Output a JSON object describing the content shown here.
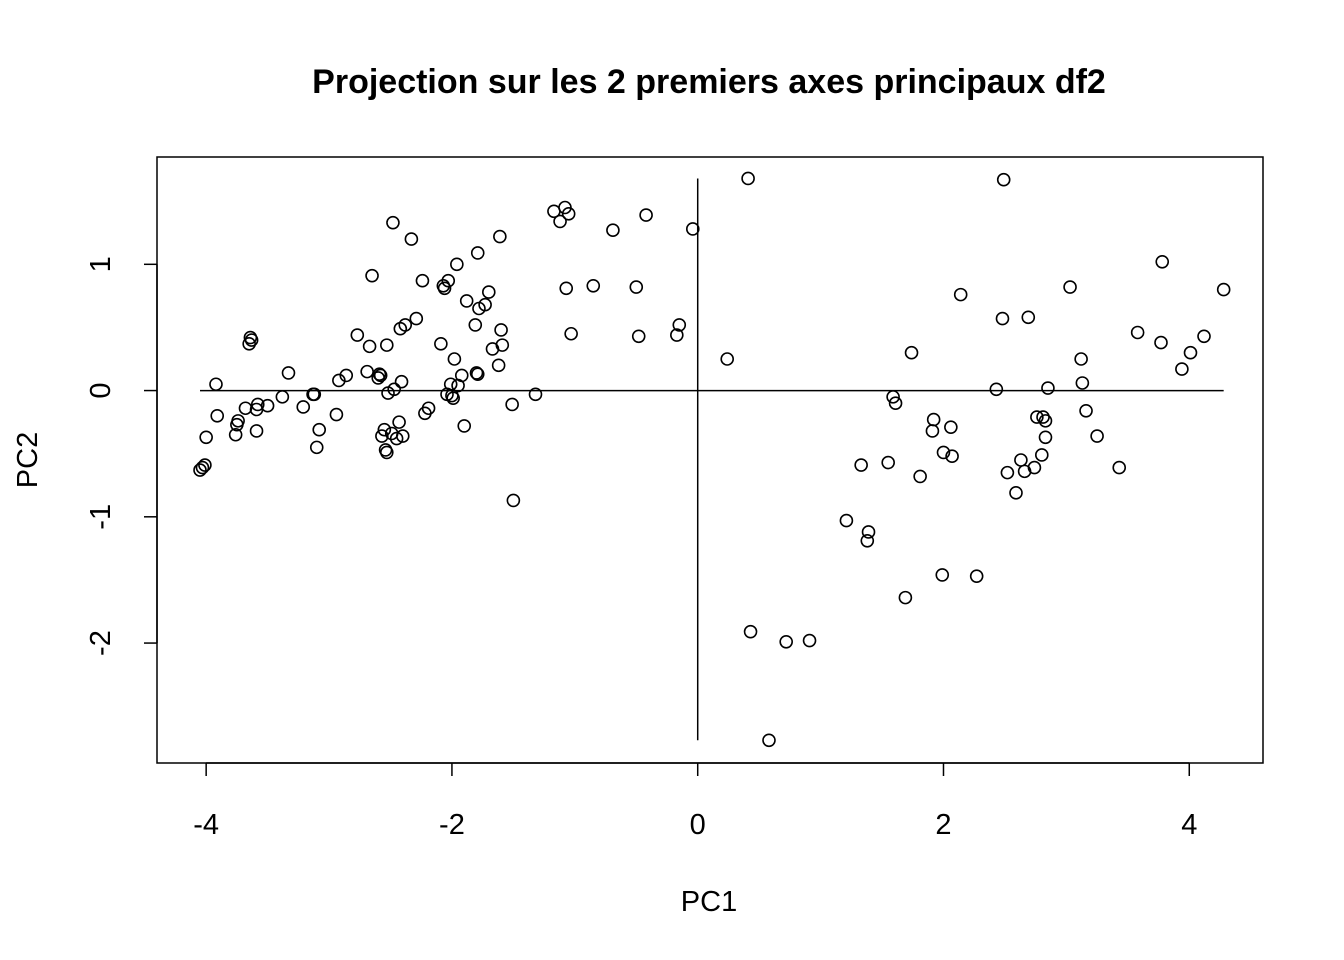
{
  "chart_data": {
    "type": "scatter",
    "title": "Projection sur les 2 premiers axes principaux df2",
    "xlabel": "PC1",
    "ylabel": "PC2",
    "xlim": [
      -4.4,
      4.6
    ],
    "ylim": [
      -2.95,
      1.85
    ],
    "xticks": [
      {
        "value": -4,
        "label": "-4"
      },
      {
        "value": -2,
        "label": "-2"
      },
      {
        "value": 0,
        "label": "0"
      },
      {
        "value": 2,
        "label": "2"
      },
      {
        "value": 4,
        "label": "4"
      }
    ],
    "yticks": [
      {
        "value": -2,
        "label": "-2"
      },
      {
        "value": -1,
        "label": "-1"
      },
      {
        "value": 0,
        "label": "0"
      },
      {
        "value": 1,
        "label": "1"
      }
    ],
    "reference_lines": {
      "horizontal": {
        "y": 0,
        "x_from": -4.05,
        "x_to": 4.28
      },
      "vertical": {
        "x": 0,
        "y_from": -2.77,
        "y_to": 1.68
      }
    },
    "grid": false,
    "legend": "none",
    "marker": "open-circle",
    "color": "#000000",
    "points": [
      [
        -4.05,
        -0.63
      ],
      [
        -4.03,
        -0.61
      ],
      [
        -4.01,
        -0.59
      ],
      [
        -4.0,
        -0.37
      ],
      [
        -3.92,
        0.05
      ],
      [
        -3.91,
        -0.2
      ],
      [
        -3.75,
        -0.27
      ],
      [
        -3.76,
        -0.35
      ],
      [
        -3.74,
        -0.24
      ],
      [
        -3.68,
        -0.14
      ],
      [
        -3.65,
        0.37
      ],
      [
        -3.64,
        0.42
      ],
      [
        -3.63,
        0.4
      ],
      [
        -3.59,
        -0.32
      ],
      [
        -3.59,
        -0.15
      ],
      [
        -3.58,
        -0.11
      ],
      [
        -3.5,
        -0.12
      ],
      [
        -3.38,
        -0.05
      ],
      [
        -3.33,
        0.14
      ],
      [
        -3.21,
        -0.13
      ],
      [
        -3.13,
        -0.03
      ],
      [
        -3.12,
        -0.03
      ],
      [
        -3.1,
        -0.45
      ],
      [
        -3.08,
        -0.31
      ],
      [
        -2.94,
        -0.19
      ],
      [
        -2.92,
        0.08
      ],
      [
        -2.86,
        0.12
      ],
      [
        -2.77,
        0.44
      ],
      [
        -2.69,
        0.15
      ],
      [
        -2.67,
        0.35
      ],
      [
        -2.65,
        0.91
      ],
      [
        -2.6,
        0.1
      ],
      [
        -2.59,
        0.13
      ],
      [
        -2.58,
        0.12
      ],
      [
        -2.57,
        -0.36
      ],
      [
        -2.55,
        -0.31
      ],
      [
        -2.54,
        -0.47
      ],
      [
        -2.53,
        -0.49
      ],
      [
        -2.53,
        0.36
      ],
      [
        -2.52,
        -0.02
      ],
      [
        -2.49,
        -0.34
      ],
      [
        -2.48,
        1.33
      ],
      [
        -2.47,
        0.01
      ],
      [
        -2.45,
        -0.38
      ],
      [
        -2.43,
        -0.25
      ],
      [
        -2.42,
        0.49
      ],
      [
        -2.41,
        0.07
      ],
      [
        -2.4,
        -0.36
      ],
      [
        -2.38,
        0.52
      ],
      [
        -2.33,
        1.2
      ],
      [
        -2.29,
        0.57
      ],
      [
        -2.24,
        0.87
      ],
      [
        -2.22,
        -0.18
      ],
      [
        -2.19,
        -0.14
      ],
      [
        -2.09,
        0.37
      ],
      [
        -2.07,
        0.83
      ],
      [
        -2.06,
        0.81
      ],
      [
        -2.04,
        -0.03
      ],
      [
        -2.03,
        0.87
      ],
      [
        -2.01,
        0.05
      ],
      [
        -2.0,
        -0.04
      ],
      [
        -1.99,
        -0.06
      ],
      [
        -1.98,
        0.25
      ],
      [
        -1.96,
        1.0
      ],
      [
        -1.95,
        0.04
      ],
      [
        -1.92,
        0.12
      ],
      [
        -1.9,
        -0.28
      ],
      [
        -1.88,
        0.71
      ],
      [
        -1.81,
        0.52
      ],
      [
        -1.8,
        0.14
      ],
      [
        -1.79,
        0.13
      ],
      [
        -1.79,
        1.09
      ],
      [
        -1.78,
        0.65
      ],
      [
        -1.73,
        0.68
      ],
      [
        -1.7,
        0.78
      ],
      [
        -1.67,
        0.33
      ],
      [
        -1.62,
        0.2
      ],
      [
        -1.61,
        1.22
      ],
      [
        -1.6,
        0.48
      ],
      [
        -1.59,
        0.36
      ],
      [
        -1.51,
        -0.11
      ],
      [
        -1.5,
        -0.87
      ],
      [
        -1.32,
        -0.03
      ],
      [
        -1.17,
        1.42
      ],
      [
        -1.12,
        1.34
      ],
      [
        -1.08,
        1.45
      ],
      [
        -1.07,
        0.81
      ],
      [
        -1.05,
        1.4
      ],
      [
        -1.03,
        0.45
      ],
      [
        -0.85,
        0.83
      ],
      [
        -0.69,
        1.27
      ],
      [
        -0.5,
        0.82
      ],
      [
        -0.48,
        0.43
      ],
      [
        -0.42,
        1.39
      ],
      [
        -0.17,
        0.44
      ],
      [
        -0.15,
        0.52
      ],
      [
        -0.04,
        1.28
      ],
      [
        0.24,
        0.25
      ],
      [
        0.41,
        1.68
      ],
      [
        0.43,
        -1.91
      ],
      [
        0.58,
        -2.77
      ],
      [
        0.72,
        -1.99
      ],
      [
        0.91,
        -1.98
      ],
      [
        1.21,
        -1.03
      ],
      [
        1.33,
        -0.59
      ],
      [
        1.38,
        -1.19
      ],
      [
        1.39,
        -1.12
      ],
      [
        1.55,
        -0.57
      ],
      [
        1.59,
        -0.05
      ],
      [
        1.61,
        -0.1
      ],
      [
        1.69,
        -1.64
      ],
      [
        1.74,
        0.3
      ],
      [
        1.81,
        -0.68
      ],
      [
        1.91,
        -0.32
      ],
      [
        1.92,
        -0.23
      ],
      [
        1.99,
        -1.46
      ],
      [
        2.0,
        -0.49
      ],
      [
        2.06,
        -0.29
      ],
      [
        2.07,
        -0.52
      ],
      [
        2.14,
        0.76
      ],
      [
        2.27,
        -1.47
      ],
      [
        2.43,
        0.01
      ],
      [
        2.48,
        0.57
      ],
      [
        2.49,
        1.67
      ],
      [
        2.52,
        -0.65
      ],
      [
        2.59,
        -0.81
      ],
      [
        2.63,
        -0.55
      ],
      [
        2.66,
        -0.64
      ],
      [
        2.69,
        0.58
      ],
      [
        2.74,
        -0.61
      ],
      [
        2.76,
        -0.21
      ],
      [
        2.8,
        -0.51
      ],
      [
        2.81,
        -0.21
      ],
      [
        2.83,
        -0.37
      ],
      [
        2.83,
        -0.24
      ],
      [
        2.85,
        0.02
      ],
      [
        3.03,
        0.82
      ],
      [
        3.12,
        0.25
      ],
      [
        3.13,
        0.06
      ],
      [
        3.16,
        -0.16
      ],
      [
        3.25,
        -0.36
      ],
      [
        3.43,
        -0.61
      ],
      [
        3.58,
        0.46
      ],
      [
        3.77,
        0.38
      ],
      [
        3.78,
        1.02
      ],
      [
        3.94,
        0.17
      ],
      [
        4.01,
        0.3
      ],
      [
        4.12,
        0.43
      ],
      [
        4.28,
        0.8
      ]
    ]
  }
}
